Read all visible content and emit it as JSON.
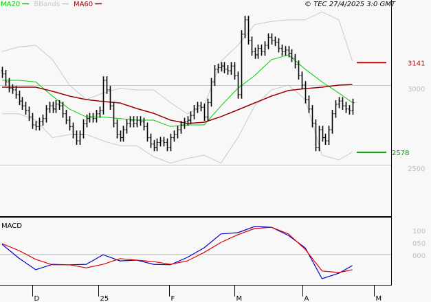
{
  "legend": [
    {
      "label": "MA20",
      "color": "#00cc00"
    },
    {
      "label": "BBands",
      "color": "#c8c8c8"
    },
    {
      "label": "MA60",
      "color": "#990000"
    }
  ],
  "copyright": "© TEC 27/4/2025 3:0 GMT",
  "colors": {
    "bars": "#000000",
    "ma20": "#00cc00",
    "ma60": "#990000",
    "bbands": "#c8c8c8",
    "macd": "#0000cc",
    "signal": "#dd0000",
    "grid": "#c8c8c8",
    "high_marker": "#cc0000",
    "low_marker": "#009900"
  },
  "chart_data": [
    {
      "type": "line",
      "panel": "price",
      "subtype": "ohlc-bars",
      "y_ticks": [
        {
          "value": 30.0,
          "label": "3000"
        },
        {
          "value": 25.0,
          "label": "2500"
        }
      ],
      "grid": true,
      "markers": [
        {
          "value": 31.41,
          "label": "3141",
          "color": "#cc0000"
        },
        {
          "value": 25.78,
          "label": "2578",
          "color": "#009900"
        }
      ],
      "close": [
        30.7,
        30.2,
        29.8,
        29.7,
        29.4,
        29.0,
        28.7,
        28.4,
        28.0,
        27.5,
        27.4,
        27.7,
        27.9,
        28.5,
        28.7,
        28.5,
        28.8,
        28.7,
        28.2,
        27.8,
        27.4,
        26.9,
        26.5,
        26.9,
        27.6,
        27.9,
        28.0,
        27.9,
        28.2,
        28.4,
        30.3,
        29.7,
        28.7,
        27.6,
        26.9,
        26.7,
        27.2,
        27.6,
        27.8,
        27.6,
        27.8,
        27.7,
        27.4,
        26.7,
        26.3,
        26.1,
        26.4,
        26.5,
        26.4,
        26.1,
        26.7,
        26.9,
        27.2,
        27.5,
        27.7,
        27.8,
        28.1,
        28.5,
        28.7,
        28.6,
        28.0,
        28.9,
        30.2,
        31.0,
        31.1,
        31.2,
        31.0,
        30.9,
        31.2,
        30.6,
        29.4,
        33.2,
        34.1,
        32.8,
        32.1,
        31.9,
        32.3,
        32.1,
        32.5,
        33.0,
        32.8,
        32.7,
        32.3,
        32.1,
        32.2,
        32.0,
        31.7,
        31.3,
        30.6,
        30.0,
        29.1,
        28.5,
        27.6,
        26.1,
        27.2,
        26.7,
        26.5,
        27.2,
        28.2,
        28.8,
        29.0,
        28.7,
        28.5,
        28.4,
        28.9
      ],
      "indicator_bar_index": [
        0,
        5,
        10,
        15,
        20,
        25,
        30,
        35,
        40,
        45,
        50,
        55,
        60,
        65,
        70,
        75,
        80,
        85,
        90,
        95,
        100,
        104
      ],
      "series": [
        {
          "name": "MA20",
          "values": [
            30.3,
            30.3,
            30.2,
            29.3,
            28.5,
            28.0,
            28.0,
            27.9,
            27.8,
            27.8,
            27.4,
            27.5,
            27.5,
            28.7,
            29.8,
            30.6,
            31.6,
            31.9,
            31.0,
            30.2,
            29.5,
            28.9
          ]
        },
        {
          "name": "MA60",
          "values": [
            29.87,
            29.87,
            29.87,
            29.61,
            29.31,
            29.09,
            28.97,
            28.88,
            28.53,
            28.23,
            27.8,
            27.59,
            27.67,
            28.02,
            28.45,
            28.88,
            29.31,
            29.66,
            29.78,
            29.87,
            30.0,
            30.04
          ]
        },
        {
          "name": "BBands",
          "band": "upper",
          "values": [
            32.1,
            32.4,
            32.5,
            31.6,
            30.0,
            29.1,
            29.5,
            29.8,
            29.7,
            29.7,
            28.9,
            28.2,
            28.7,
            31.5,
            32.5,
            33.8,
            34.0,
            34.1,
            34.1,
            34.6,
            34.1,
            31.5
          ]
        },
        {
          "name": "BBands",
          "band": "lower",
          "values": [
            28.2,
            28.2,
            27.8,
            26.7,
            26.9,
            26.9,
            26.5,
            26.2,
            26.2,
            25.5,
            25.1,
            25.4,
            25.6,
            25.1,
            26.7,
            28.7,
            29.7,
            30.0,
            29.1,
            25.6,
            25.3,
            25.8
          ]
        }
      ]
    },
    {
      "type": "line",
      "panel": "macd",
      "title": "MACD",
      "y_ticks": [
        {
          "value": 1.0,
          "label": "100"
        },
        {
          "value": 0.5,
          "label": "050"
        },
        {
          "value": 0.0,
          "label": "000"
        }
      ],
      "grid": true,
      "indicator_bar_index": [
        0,
        5,
        10,
        15,
        20,
        25,
        30,
        35,
        40,
        45,
        50,
        55,
        60,
        65,
        70,
        75,
        80,
        85,
        90,
        95,
        100,
        104
      ],
      "series": [
        {
          "role": "macd",
          "values": [
            0.39,
            -0.17,
            -0.64,
            -0.42,
            -0.44,
            -0.42,
            -0.03,
            -0.28,
            -0.25,
            -0.42,
            -0.44,
            -0.14,
            0.25,
            0.81,
            0.86,
            1.11,
            1.08,
            0.75,
            0.25,
            -1.0,
            -0.78,
            -0.47
          ]
        },
        {
          "role": "signal",
          "values": [
            0.42,
            0.14,
            -0.22,
            -0.44,
            -0.44,
            -0.56,
            -0.42,
            -0.19,
            -0.25,
            -0.31,
            -0.42,
            -0.28,
            0.06,
            0.47,
            0.78,
            1.03,
            1.08,
            0.81,
            0.19,
            -0.69,
            -0.75,
            -0.64
          ]
        }
      ]
    }
  ],
  "x_axis": {
    "ticks": [
      {
        "label": "D",
        "bar_index": 9
      },
      {
        "label": "25",
        "bar_index": 28.6
      },
      {
        "label": "F",
        "bar_index": 49.6
      },
      {
        "label": "M",
        "bar_index": 69
      },
      {
        "label": "A",
        "bar_index": 89.2
      },
      {
        "label": "M",
        "bar_index": 110.5
      }
    ]
  }
}
